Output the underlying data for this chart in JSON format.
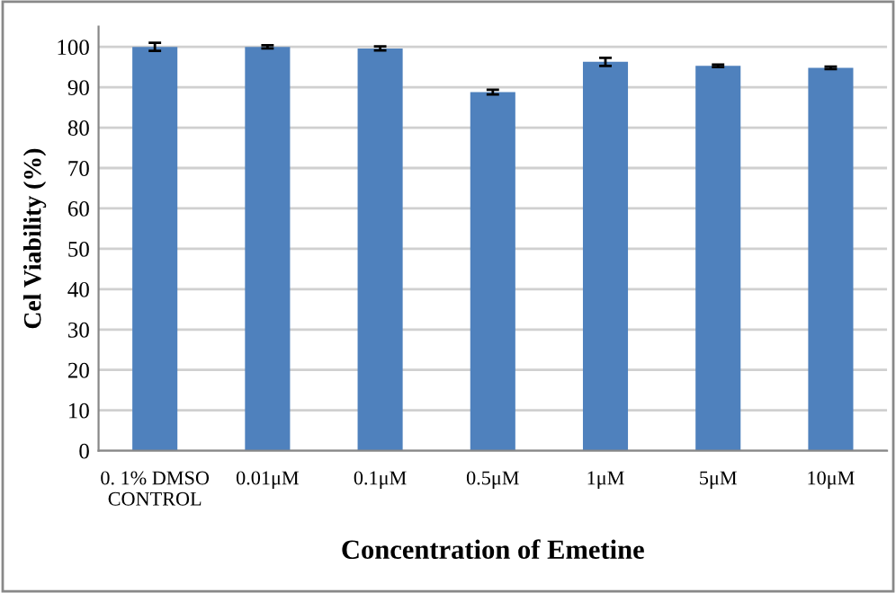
{
  "chart_data": {
    "type": "bar",
    "xlabel": "Concentration of Emetine",
    "ylabel": "Cel Viability (%)",
    "categories": [
      "0. 1% DMSO\nCONTROL",
      "0.01μM",
      "0.1μM",
      "0.5μM",
      "1μM",
      "5μM",
      "10μM"
    ],
    "values": [
      100,
      100,
      99.6,
      88.8,
      96.3,
      95.3,
      94.8
    ],
    "errors": [
      1.0,
      0.4,
      0.5,
      0.6,
      1.0,
      0.3,
      0.3
    ],
    "color": "#4f81bd",
    "ylim": [
      0,
      105
    ],
    "yticks": [
      0,
      10,
      20,
      30,
      40,
      50,
      60,
      70,
      80,
      90,
      100
    ],
    "grid": "y",
    "legend": false
  }
}
